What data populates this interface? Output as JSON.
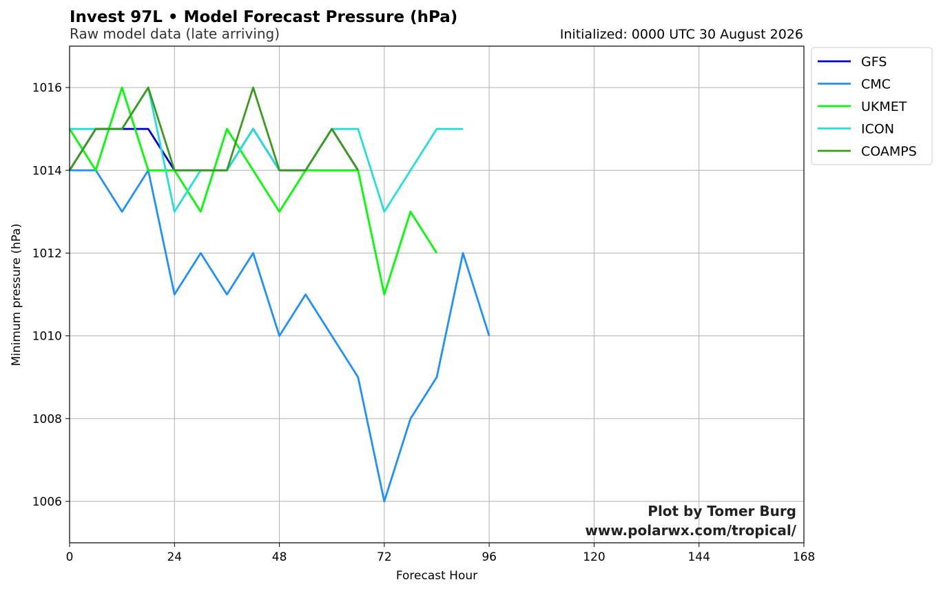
{
  "chart_data": {
    "type": "line",
    "title": "Invest 97L • Model Forecast Pressure (hPa)",
    "subtitle": "Raw model data (late arriving)",
    "init_text": "Initialized: 0000 UTC 30 August 2026",
    "xlabel": "Forecast Hour",
    "ylabel": "Minimum pressure (hPa)",
    "xlim": [
      0,
      168
    ],
    "ylim": [
      1005,
      1017
    ],
    "xticks": [
      0,
      24,
      48,
      72,
      96,
      120,
      144,
      168
    ],
    "yticks": [
      1006,
      1008,
      1010,
      1012,
      1014,
      1016
    ],
    "grid": true,
    "legend_position": "outside-top-right",
    "credit_line1": "Plot by Tomer Burg",
    "credit_line2": "www.polarwx.com/tropical/",
    "series": [
      {
        "name": "GFS",
        "color": "#0000dd",
        "x": [
          0,
          6,
          12,
          18,
          24,
          30,
          36,
          42,
          48,
          54,
          60,
          66
        ],
        "y": [
          1014,
          1015,
          1015,
          1015,
          1014,
          1014,
          1014,
          1015,
          1014,
          1014,
          1015,
          1014
        ]
      },
      {
        "name": "CMC",
        "color": "#1e90ff",
        "x": [
          0,
          6,
          12,
          18,
          24,
          30,
          36,
          42,
          48,
          54,
          60,
          66,
          72,
          78,
          84,
          90,
          96
        ],
        "y": [
          1014,
          1014,
          1013,
          1014,
          1011,
          1012,
          1011,
          1012,
          1010,
          1011,
          1010,
          1009,
          1006,
          1008,
          1009,
          1012,
          1010
        ]
      },
      {
        "name": "UKMET",
        "color": "#00ff00",
        "x": [
          0,
          6,
          12,
          18,
          24,
          30,
          36,
          42,
          48,
          54,
          60,
          66,
          72,
          78,
          84
        ],
        "y": [
          1015,
          1014,
          1016,
          1014,
          1014,
          1013,
          1015,
          1014,
          1013,
          1014,
          1014,
          1014,
          1011,
          1013,
          1012
        ]
      },
      {
        "name": "ICON",
        "color": "#22e0d8",
        "x": [
          0,
          6,
          12,
          18,
          24,
          30,
          36,
          42,
          48,
          54,
          60,
          66,
          72,
          78,
          84,
          90
        ],
        "y": [
          1015,
          1015,
          1015,
          1016,
          1013,
          1014,
          1014,
          1015,
          1014,
          1014,
          1015,
          1015,
          1013,
          1014,
          1015,
          1015
        ]
      },
      {
        "name": "COAMPS",
        "color": "#3a9a1a",
        "x": [
          0,
          6,
          12,
          18,
          24,
          30,
          36,
          42,
          48,
          54,
          60,
          66
        ],
        "y": [
          1014,
          1015,
          1015,
          1016,
          1014,
          1014,
          1014,
          1016,
          1014,
          1014,
          1015,
          1014
        ]
      }
    ]
  }
}
